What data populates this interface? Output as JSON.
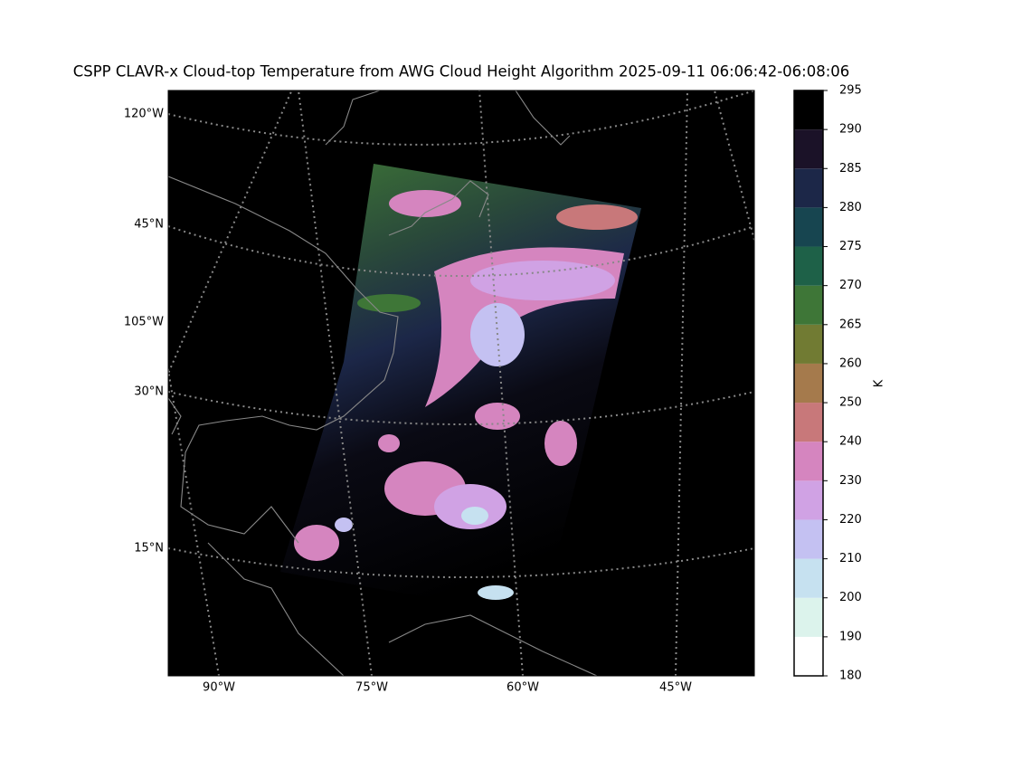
{
  "title": "CSPP CLAVR-x Cloud-top Temperature from AWG Cloud Height Algorithm 2025-09-11 06:06:42-06:08:06",
  "map": {
    "lon_labels": [
      "90°W",
      "75°W",
      "60°W",
      "45°W"
    ],
    "lat_labels": [
      "120°W",
      "45°N",
      "105°W",
      "30°N",
      "15°N"
    ]
  },
  "colorbar": {
    "label": "K",
    "ticks": [
      180,
      190,
      200,
      210,
      220,
      230,
      240,
      250,
      260,
      265,
      270,
      275,
      280,
      285,
      290,
      295
    ],
    "colors": [
      "#ffffff",
      "#dcf3ec",
      "#c6e1f0",
      "#c4c1f2",
      "#d0a2e4",
      "#d585bf",
      "#c8787a",
      "#a57a4c",
      "#717b33",
      "#3e7637",
      "#1e6148",
      "#174550",
      "#1c2748",
      "#1b1228",
      "#000000"
    ]
  }
}
